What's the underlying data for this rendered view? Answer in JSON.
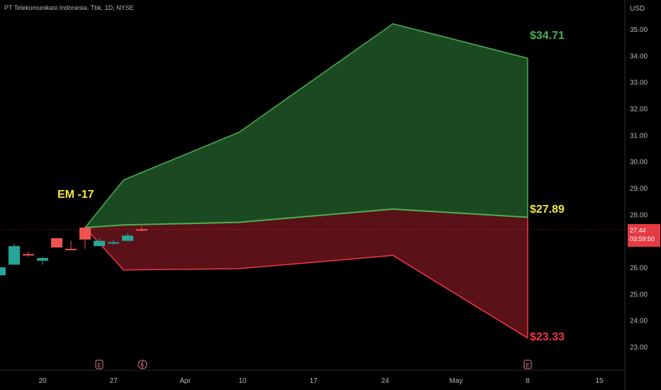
{
  "title": "PT Telekomunikasi Indonesia, Tbk, 1D, NYSE",
  "currency_label": "USD",
  "em_label": "EM -17",
  "current_price": {
    "value": "27.44",
    "countdown": "03:59:50"
  },
  "end_labels": {
    "upper": "$34.71",
    "mid": "$27.89",
    "lower": "$23.33"
  },
  "colors": {
    "background": "#000000",
    "upper_fill": "#1b4a22",
    "upper_line": "#4caf50",
    "lower_fill": "#5a1218",
    "lower_line": "#f23645",
    "up_candle": "#26a69a",
    "down_candle": "#ef5350",
    "em_label": "#f5e642",
    "mid_label": "#f5e642",
    "axis_text": "#b2b5be"
  },
  "chart_data": {
    "type": "area",
    "y_axis": {
      "unit": "USD",
      "ylim": [
        22.6,
        35.6
      ],
      "ticks": [
        "35.00",
        "34.00",
        "33.00",
        "32.00",
        "31.00",
        "30.00",
        "29.00",
        "28.00",
        "27.00",
        "26.00",
        "25.00",
        "24.00",
        "23.00"
      ]
    },
    "x_axis": {
      "ticks": [
        "20",
        "27",
        "Apr",
        "10",
        "17",
        "24",
        "May",
        "8",
        "15"
      ]
    },
    "series": [
      {
        "name": "upper",
        "points": [
          [
            0,
            27.5
          ],
          [
            2,
            29.3
          ],
          [
            8,
            31.1
          ],
          [
            16,
            35.2
          ],
          [
            23,
            33.9
          ],
          [
            23,
            34.71
          ]
        ]
      },
      {
        "name": "mid",
        "points": [
          [
            0,
            27.5
          ],
          [
            2,
            27.6
          ],
          [
            8,
            27.7
          ],
          [
            16,
            28.2
          ],
          [
            23,
            27.89
          ]
        ]
      },
      {
        "name": "lower",
        "points": [
          [
            0,
            27.5
          ],
          [
            2,
            25.9
          ],
          [
            8,
            25.95
          ],
          [
            16,
            26.45
          ],
          [
            23,
            23.33
          ]
        ]
      }
    ],
    "candles": [
      {
        "o": 26.0,
        "h": 26.0,
        "l": 25.7,
        "c": 25.7,
        "dir": "up"
      },
      {
        "o": 26.1,
        "h": 26.9,
        "l": 26.1,
        "c": 26.8,
        "dir": "up"
      },
      {
        "o": 26.5,
        "h": 26.6,
        "l": 26.4,
        "c": 26.45,
        "dir": "down"
      },
      {
        "o": 26.25,
        "h": 26.4,
        "l": 26.1,
        "c": 26.35,
        "dir": "up"
      },
      {
        "o": 27.1,
        "h": 27.1,
        "l": 26.75,
        "c": 26.75,
        "dir": "down"
      },
      {
        "o": 26.7,
        "h": 27.0,
        "l": 26.7,
        "c": 26.68,
        "dir": "down"
      },
      {
        "o": 27.5,
        "h": 27.55,
        "l": 26.7,
        "c": 27.05,
        "dir": "down"
      },
      {
        "o": 26.8,
        "h": 27.1,
        "l": 26.8,
        "c": 27.0,
        "dir": "up"
      },
      {
        "o": 26.9,
        "h": 27.05,
        "l": 26.85,
        "c": 26.95,
        "dir": "up"
      },
      {
        "o": 27.0,
        "h": 27.3,
        "l": 27.0,
        "c": 27.2,
        "dir": "up"
      },
      {
        "o": 27.44,
        "h": 27.55,
        "l": 27.35,
        "c": 27.44,
        "dir": "down"
      }
    ],
    "events": [
      "E",
      "flash",
      "E"
    ]
  }
}
